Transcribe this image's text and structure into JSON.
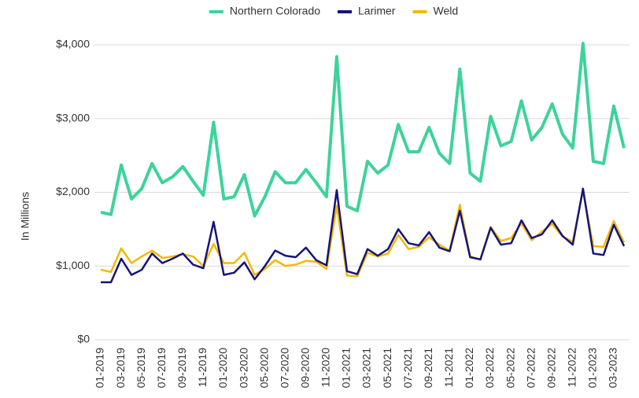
{
  "chart_data": {
    "type": "line",
    "y_label": "In Millions",
    "categories": [
      "01-2019",
      null,
      "03-2019",
      null,
      "05-2019",
      null,
      "07-2019",
      null,
      "09-2019",
      null,
      "11-2019",
      null,
      "01-2020",
      null,
      "03-2020",
      null,
      "05-2020",
      null,
      "07-2020",
      null,
      "09-2020",
      null,
      "11-2020",
      null,
      "01-2021",
      null,
      "03-2021",
      null,
      "05-2021",
      null,
      "07-2021",
      null,
      "09-2021",
      null,
      "11-2021",
      null,
      "01-2022",
      null,
      "03-2022",
      null,
      "05-2022",
      null,
      "07-2022",
      null,
      "09-2022",
      null,
      "11-2022",
      null,
      "01-2023",
      null,
      "03-2023",
      null
    ],
    "series": [
      {
        "name": "Northern Colorado",
        "color": "#3dd39a",
        "values": [
          1730,
          1700,
          2370,
          1910,
          2050,
          2390,
          2130,
          2210,
          2350,
          2150,
          1960,
          2950,
          1910,
          1940,
          2240,
          1680,
          1940,
          2280,
          2130,
          2130,
          2310,
          2130,
          1940,
          3840,
          1810,
          1750,
          2420,
          2260,
          2370,
          2920,
          2550,
          2550,
          2880,
          2530,
          2390,
          3670,
          2260,
          2150,
          3030,
          2630,
          2690,
          3240,
          2710,
          2880,
          3200,
          2790,
          2600,
          4020,
          2420,
          2390,
          3170,
          2600
        ]
      },
      {
        "name": "Larimer",
        "color": "#14147a",
        "values": [
          780,
          780,
          1100,
          880,
          950,
          1170,
          1040,
          1100,
          1170,
          1020,
          970,
          1600,
          880,
          910,
          1050,
          820,
          1000,
          1210,
          1140,
          1120,
          1250,
          1080,
          1010,
          2030,
          930,
          890,
          1230,
          1140,
          1230,
          1500,
          1310,
          1280,
          1460,
          1250,
          1200,
          1750,
          1120,
          1090,
          1520,
          1290,
          1310,
          1620,
          1380,
          1430,
          1620,
          1410,
          1290,
          2050,
          1170,
          1150,
          1560,
          1270
        ]
      },
      {
        "name": "Weld",
        "color": "#f5b800",
        "values": [
          950,
          920,
          1240,
          1040,
          1130,
          1210,
          1110,
          1130,
          1160,
          1130,
          1000,
          1300,
          1040,
          1040,
          1180,
          880,
          960,
          1080,
          1000,
          1020,
          1070,
          1060,
          960,
          1820,
          870,
          860,
          1180,
          1130,
          1170,
          1420,
          1230,
          1260,
          1390,
          1290,
          1210,
          1830,
          1130,
          1090,
          1530,
          1340,
          1380,
          1580,
          1350,
          1470,
          1570,
          1400,
          1330,
          2020,
          1270,
          1260,
          1610,
          1320
        ]
      }
    ],
    "ylim": [
      0,
      4000
    ],
    "yticks": [
      {
        "value": 0,
        "label": "$0"
      },
      {
        "value": 1000,
        "label": "$1,000"
      },
      {
        "value": 2000,
        "label": "$2,000"
      },
      {
        "value": 3000,
        "label": "$3,000"
      },
      {
        "value": 4000,
        "label": "$4,000"
      }
    ],
    "grid": true,
    "legend": "top"
  }
}
